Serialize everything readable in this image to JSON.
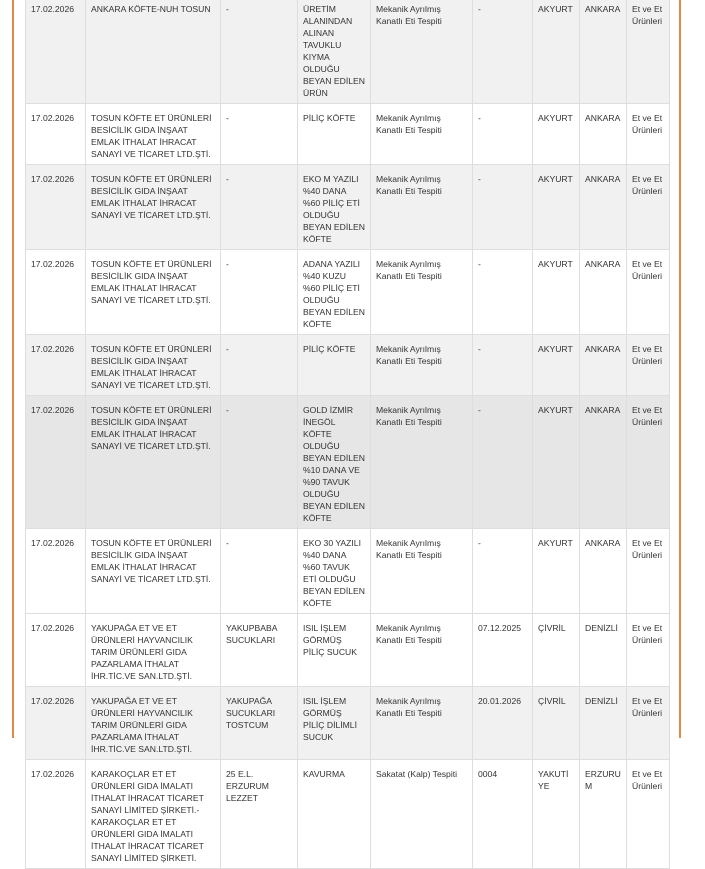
{
  "accent_color": "#e08a45",
  "rows": [
    {
      "date": "17.02.2026",
      "company": "ANKARA KÖFTE-NUH TOSUN",
      "brand": "-",
      "product": "ÜRETİM ALANINDAN ALINAN TAVUKLU KIYMA OLDUĞU BEYAN EDİLEN ÜRÜN",
      "reason": "Mekanik Ayrılmış Kanatlı Eti Tespiti",
      "lot": "-",
      "district": "AKYURT",
      "city": "ANKARA",
      "category": "Et ve Et Ürünleri",
      "bg": "g"
    },
    {
      "date": "17.02.2026",
      "company": "TOSUN KÖFTE ET ÜRÜNLERİ BESİCİLİK GIDA İNŞAAT EMLAK İTHALAT İHRACAT SANAYİ VE TİCARET LTD.ŞTİ.",
      "brand": "-",
      "product": "PİLİÇ KÖFTE",
      "reason": "Mekanik Ayrılmış Kanatlı Eti Tespiti",
      "lot": "-",
      "district": "AKYURT",
      "city": "ANKARA",
      "category": "Et ve Et Ürünleri",
      "bg": "w"
    },
    {
      "date": "17.02.2026",
      "company": "TOSUN KÖFTE ET ÜRÜNLERİ BESİCİLİK GIDA İNŞAAT EMLAK İTHALAT İHRACAT SANAYİ VE TİCARET LTD.ŞTİ.",
      "brand": "-",
      "product": "EKO M YAZILI %40 DANA %60 PİLİÇ ETİ OLDUĞU BEYAN EDİLEN KÖFTE",
      "reason": "Mekanik Ayrılmış Kanatlı Eti Tespiti",
      "lot": "-",
      "district": "AKYURT",
      "city": "ANKARA",
      "category": "Et ve Et Ürünleri",
      "bg": "g"
    },
    {
      "date": "17.02.2026",
      "company": "TOSUN KÖFTE ET ÜRÜNLERİ BESİCİLİK GIDA İNŞAAT EMLAK İTHALAT İHRACAT SANAYİ VE TİCARET LTD.ŞTİ.",
      "brand": "-",
      "product": "ADANA YAZILI %40 KUZU %60 PİLİÇ ETİ OLDUĞU BEYAN EDİLEN KÖFTE",
      "reason": "Mekanik Ayrılmış Kanatlı Eti Tespiti",
      "lot": "-",
      "district": "AKYURT",
      "city": "ANKARA",
      "category": "Et ve Et Ürünleri",
      "bg": "w"
    },
    {
      "date": "17.02.2026",
      "company": "TOSUN KÖFTE ET ÜRÜNLERİ BESİCİLİK GIDA İNŞAAT EMLAK İTHALAT İHRACAT SANAYİ VE TİCARET LTD.ŞTİ.",
      "brand": "-",
      "product": "PİLİÇ KÖFTE",
      "reason": "Mekanik Ayrılmış Kanatlı Eti Tespiti",
      "lot": "-",
      "district": "AKYURT",
      "city": "ANKARA",
      "category": "Et ve Et Ürünleri",
      "bg": "g"
    },
    {
      "date": "17.02.2026",
      "company": "TOSUN KÖFTE ET ÜRÜNLERİ BESİCİLİK GIDA İNŞAAT EMLAK İTHALAT İHRACAT SANAYİ VE TİCARET LTD.ŞTİ.",
      "brand": "-",
      "product": "GOLD İZMİR İNEGÖL KÖFTE OLDUĞU BEYAN EDİLEN %10 DANA VE %90 TAVUK OLDUĞU BEYAN EDİLEN KÖFTE",
      "reason": "Mekanik Ayrılmış Kanatlı Eti Tespiti",
      "lot": "-",
      "district": "AKYURT",
      "city": "ANKARA",
      "category": "Et ve Et Ürünleri",
      "bg": "h"
    },
    {
      "date": "17.02.2026",
      "company": "TOSUN KÖFTE ET ÜRÜNLERİ BESİCİLİK GIDA İNŞAAT EMLAK İTHALAT İHRACAT SANAYİ VE TİCARET LTD.ŞTİ.",
      "brand": "-",
      "product": "EKO 30 YAZILI %40 DANA %60 TAVUK ETİ OLDUĞU BEYAN EDİLEN KÖFTE",
      "reason": "Mekanik Ayrılmış Kanatlı Eti Tespiti",
      "lot": "-",
      "district": "AKYURT",
      "city": "ANKARA",
      "category": "Et ve Et Ürünleri",
      "bg": "w"
    },
    {
      "date": "17.02.2026",
      "company": "YAKUPAĞA ET VE ET ÜRÜNLERİ HAYVANCILIK TARIM ÜRÜNLERİ GIDA PAZARLAMA İTHALAT İHR.TİC.VE SAN.LTD.ŞTİ.",
      "brand": "YAKUPBABA SUCUKLARI",
      "product": "ISIL İŞLEM GÖRMÜŞ PİLİÇ SUCUK",
      "reason": "Mekanik Ayrılmış Kanatlı Eti Tespiti",
      "lot": "07.12.2025",
      "district": "ÇİVRİL",
      "city": "DENİZLİ",
      "category": "Et ve Et Ürünleri",
      "bg": "w"
    },
    {
      "date": "17.02.2026",
      "company": "YAKUPAĞA ET VE ET ÜRÜNLERİ HAYVANCILIK TARIM ÜRÜNLERİ GIDA PAZARLAMA İTHALAT İHR.TİC.VE SAN.LTD.ŞTİ.",
      "brand": "YAKUPAĞA SUCUKLARI TOSTCUM",
      "product": "ISIL İŞLEM GÖRMÜŞ PİLİÇ DİLİMLİ SUCUK",
      "reason": "Mekanik Ayrılmış Kanatlı Eti Tespiti",
      "lot": "20.01.2026",
      "district": "ÇİVRİL",
      "city": "DENİZLİ",
      "category": "Et ve Et Ürünleri",
      "bg": "g"
    },
    {
      "date": "17.02.2026",
      "company": "KARAKOÇLAR ET ET ÜRÜNLERİ GIDA İMALATI İTHALAT İHRACAT TİCARET SANAYİ LİMİTED ŞİRKETİ.-KARAKOÇLAR ET ET ÜRÜNLERİ GIDA İMALATI İTHALAT İHRACAT TİCARET SANAYİ LİMİTED ŞİRKETİ.",
      "brand": "25 E.L. ERZURUM LEZZET",
      "product": "KAVURMA",
      "reason": "Sakatat (Kalp) Tespiti",
      "lot": "0004",
      "district": "YAKUTİYE",
      "city": "ERZURUM",
      "category": "Et ve Et Ürünleri",
      "bg": "w"
    }
  ]
}
